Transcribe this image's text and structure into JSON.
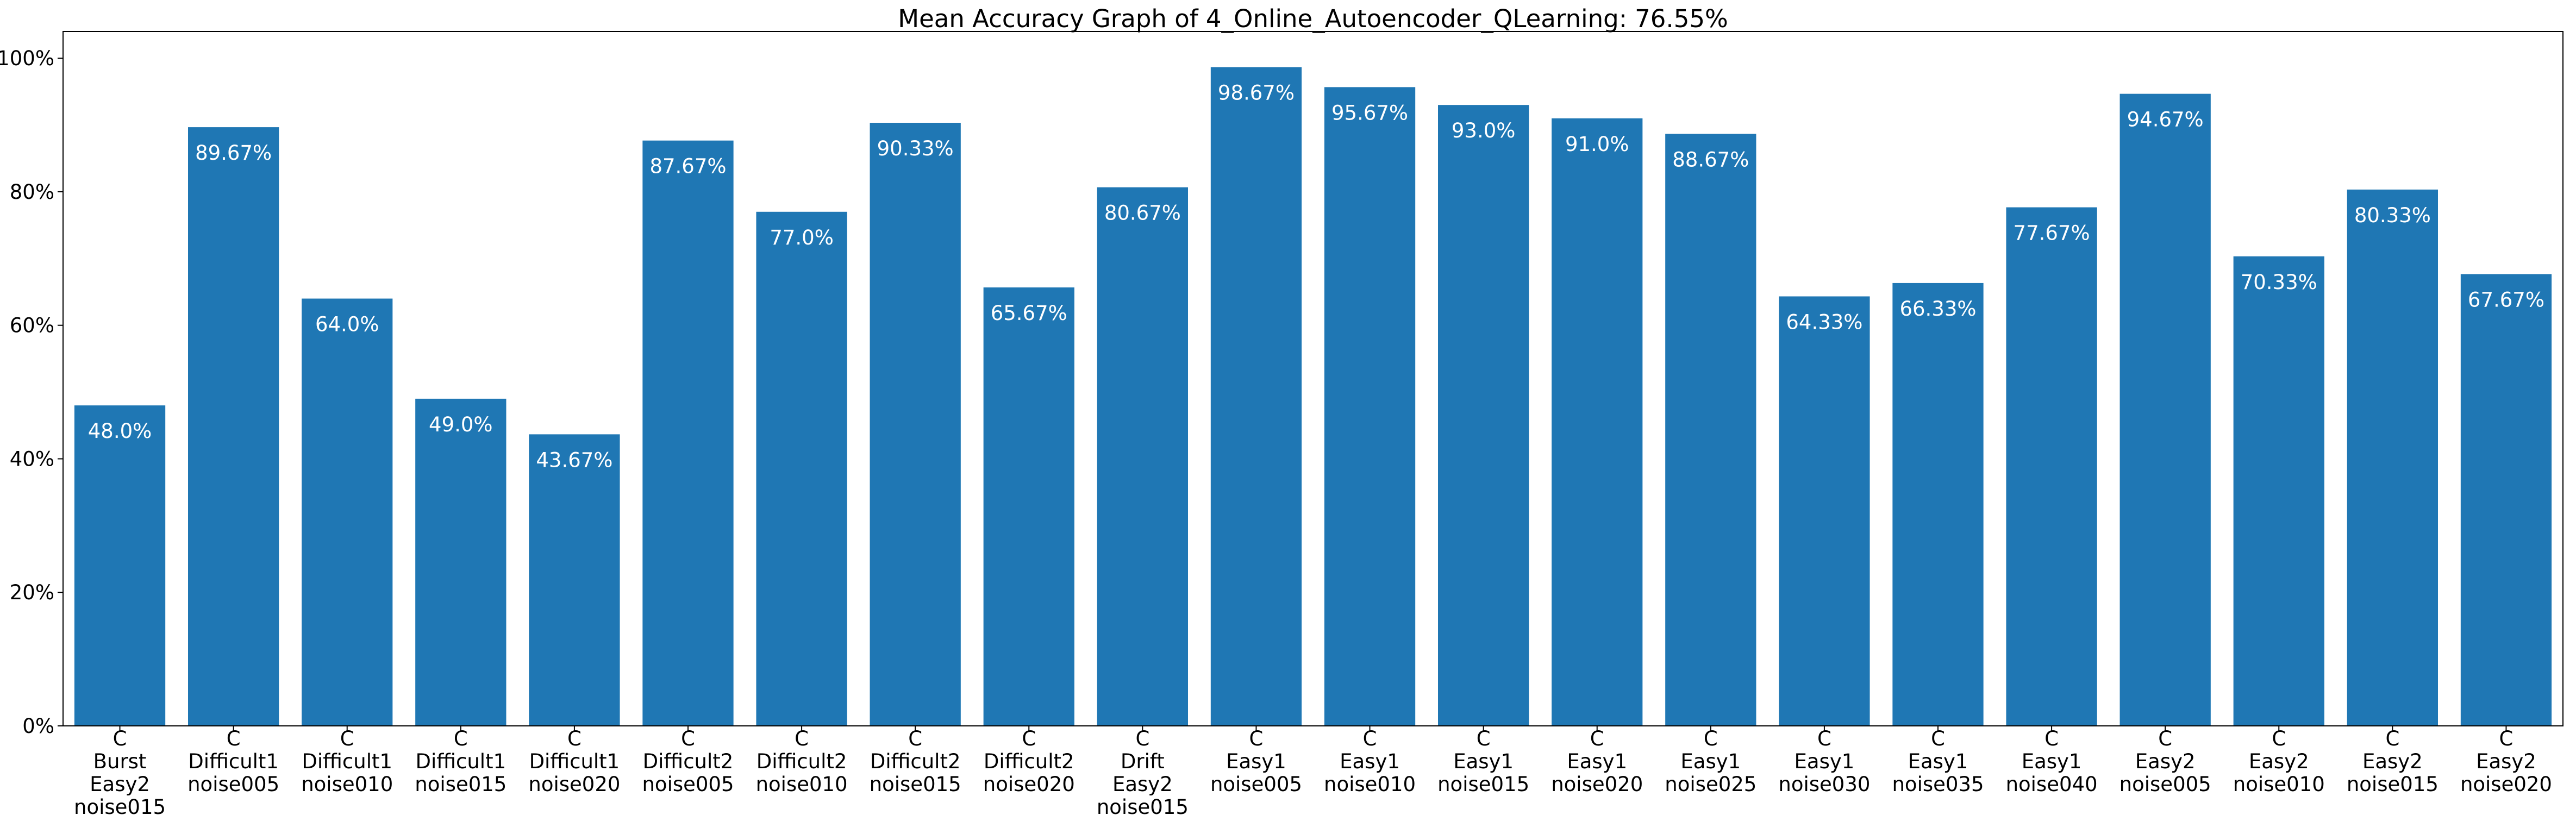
{
  "chart_data": {
    "type": "bar",
    "title": "Mean Accuracy Graph of 4_Online_Autoencoder_QLearning: 76.55%",
    "xlabel": "",
    "ylabel": "",
    "ylim": [
      0,
      104
    ],
    "yticks": [
      0,
      20,
      40,
      60,
      80,
      100
    ],
    "ytick_labels": [
      "0%",
      "20%",
      "40%",
      "60%",
      "80%",
      "100%"
    ],
    "grid": false,
    "bar_color": "#1f77b4",
    "bar_label_color": "#ffffff",
    "categories": [
      [
        "C",
        "Burst",
        "Easy2",
        "noise015"
      ],
      [
        "C",
        "Difficult1",
        "noise005"
      ],
      [
        "C",
        "Difficult1",
        "noise010"
      ],
      [
        "C",
        "Difficult1",
        "noise015"
      ],
      [
        "C",
        "Difficult1",
        "noise020"
      ],
      [
        "C",
        "Difficult2",
        "noise005"
      ],
      [
        "C",
        "Difficult2",
        "noise010"
      ],
      [
        "C",
        "Difficult2",
        "noise015"
      ],
      [
        "C",
        "Difficult2",
        "noise020"
      ],
      [
        "C",
        "Drift",
        "Easy2",
        "noise015"
      ],
      [
        "C",
        "Easy1",
        "noise005"
      ],
      [
        "C",
        "Easy1",
        "noise010"
      ],
      [
        "C",
        "Easy1",
        "noise015"
      ],
      [
        "C",
        "Easy1",
        "noise020"
      ],
      [
        "C",
        "Easy1",
        "noise025"
      ],
      [
        "C",
        "Easy1",
        "noise030"
      ],
      [
        "C",
        "Easy1",
        "noise035"
      ],
      [
        "C",
        "Easy1",
        "noise040"
      ],
      [
        "C",
        "Easy2",
        "noise005"
      ],
      [
        "C",
        "Easy2",
        "noise010"
      ],
      [
        "C",
        "Easy2",
        "noise015"
      ],
      [
        "C",
        "Easy2",
        "noise020"
      ]
    ],
    "values": [
      48.0,
      89.67,
      64.0,
      49.0,
      43.67,
      87.67,
      77.0,
      90.33,
      65.67,
      80.67,
      98.67,
      95.67,
      93.0,
      91.0,
      88.67,
      64.33,
      66.33,
      77.67,
      94.67,
      70.33,
      80.33,
      67.67
    ],
    "value_labels": [
      "48.0%",
      "89.67%",
      "64.0%",
      "49.0%",
      "43.67%",
      "87.67%",
      "77.0%",
      "90.33%",
      "65.67%",
      "80.67%",
      "98.67%",
      "95.67%",
      "93.0%",
      "91.0%",
      "88.67%",
      "64.33%",
      "66.33%",
      "77.67%",
      "94.67%",
      "70.33%",
      "80.33%",
      "67.67%"
    ]
  }
}
